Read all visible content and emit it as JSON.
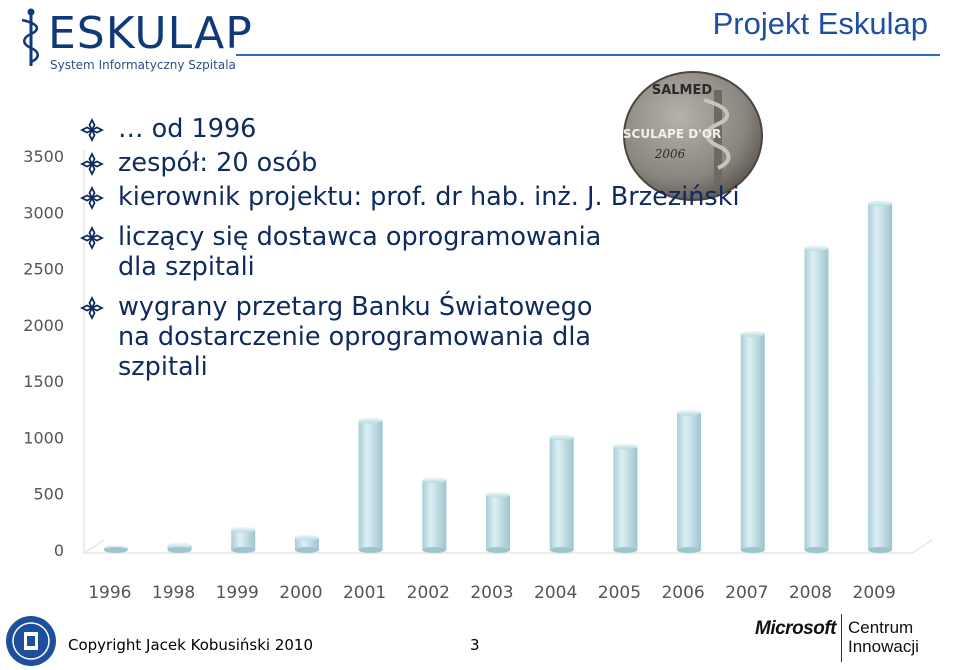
{
  "header": {
    "logo_text": "ESKULAP",
    "logo_subtitle": "System Informatyczny Szpitala",
    "project_title": "Projekt Eskulap"
  },
  "bullets": [
    {
      "text": "… od 1996"
    },
    {
      "text": "zespół: 20 osób"
    },
    {
      "text": "kierownik projektu: prof. dr hab. inż. J. Brzeziński"
    },
    {
      "text": "liczący się dostawca oprogramowania",
      "text2": "dla szpitali"
    },
    {
      "text": "wygrany przetarg Banku Światowego",
      "text2": "na dostarczenie oprogramowania dla",
      "text3": "szpitali"
    }
  ],
  "medal": {
    "top_text": "SALMED",
    "middle_text": "ESCULAPE D'OR",
    "year_text": "2006"
  },
  "chart_data": {
    "type": "bar",
    "categories": [
      "1996",
      "1998",
      "1999",
      "2000",
      "2001",
      "2002",
      "2003",
      "2004",
      "2005",
      "2006",
      "2007",
      "2008",
      "2009"
    ],
    "values": [
      20,
      40,
      180,
      110,
      1150,
      620,
      490,
      1000,
      920,
      1220,
      1920,
      2680,
      3080
    ],
    "ylim": [
      0,
      3500
    ],
    "yticks": [
      "0",
      "500",
      "1000",
      "1500",
      "2000",
      "2500",
      "3000",
      "3500"
    ],
    "bar_color": "#c9e3ea",
    "gridlines": false
  },
  "footer": {
    "copyright": "Copyright Jacek Kobusiński 2010",
    "page_number": "3",
    "partner_logo": "Microsoft",
    "partner_name_1": "Centrum",
    "partner_name_2": "Innowacji"
  }
}
